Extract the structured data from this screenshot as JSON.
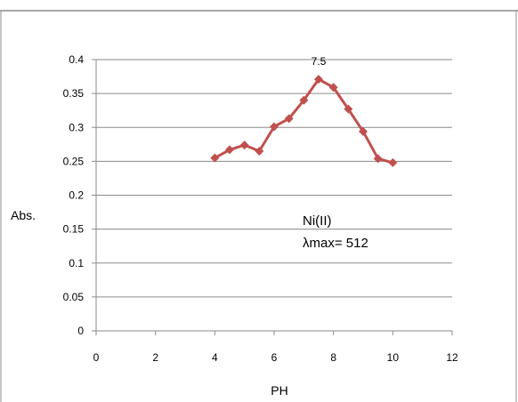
{
  "chart_data": {
    "type": "line",
    "xlabel": "PH",
    "ylabel": "Abs.",
    "xlim": [
      0,
      12
    ],
    "ylim": [
      0,
      0.4
    ],
    "x_ticks": [
      "0",
      "2",
      "4",
      "6",
      "8",
      "10",
      "12"
    ],
    "y_ticks": [
      "0",
      "0.05",
      "0.1",
      "0.15",
      "0.2",
      "0.25",
      "0.3",
      "0.35",
      "0.4"
    ],
    "grid": true,
    "series": [
      {
        "color": "#c0504d",
        "marker": "diamond",
        "x": [
          4,
          4.5,
          5,
          5.5,
          6,
          6.5,
          7,
          7.5,
          8,
          8.5,
          9,
          9.5,
          10
        ],
        "y": [
          0.255,
          0.267,
          0.274,
          0.265,
          0.301,
          0.313,
          0.34,
          0.371,
          0.359,
          0.327,
          0.294,
          0.254,
          0.248
        ]
      }
    ],
    "peak_label": {
      "text": "7.5",
      "x": 7.5,
      "y": 0.371
    },
    "annotation": {
      "line1": "Ni(II)",
      "line2": "λmax= 512"
    }
  }
}
